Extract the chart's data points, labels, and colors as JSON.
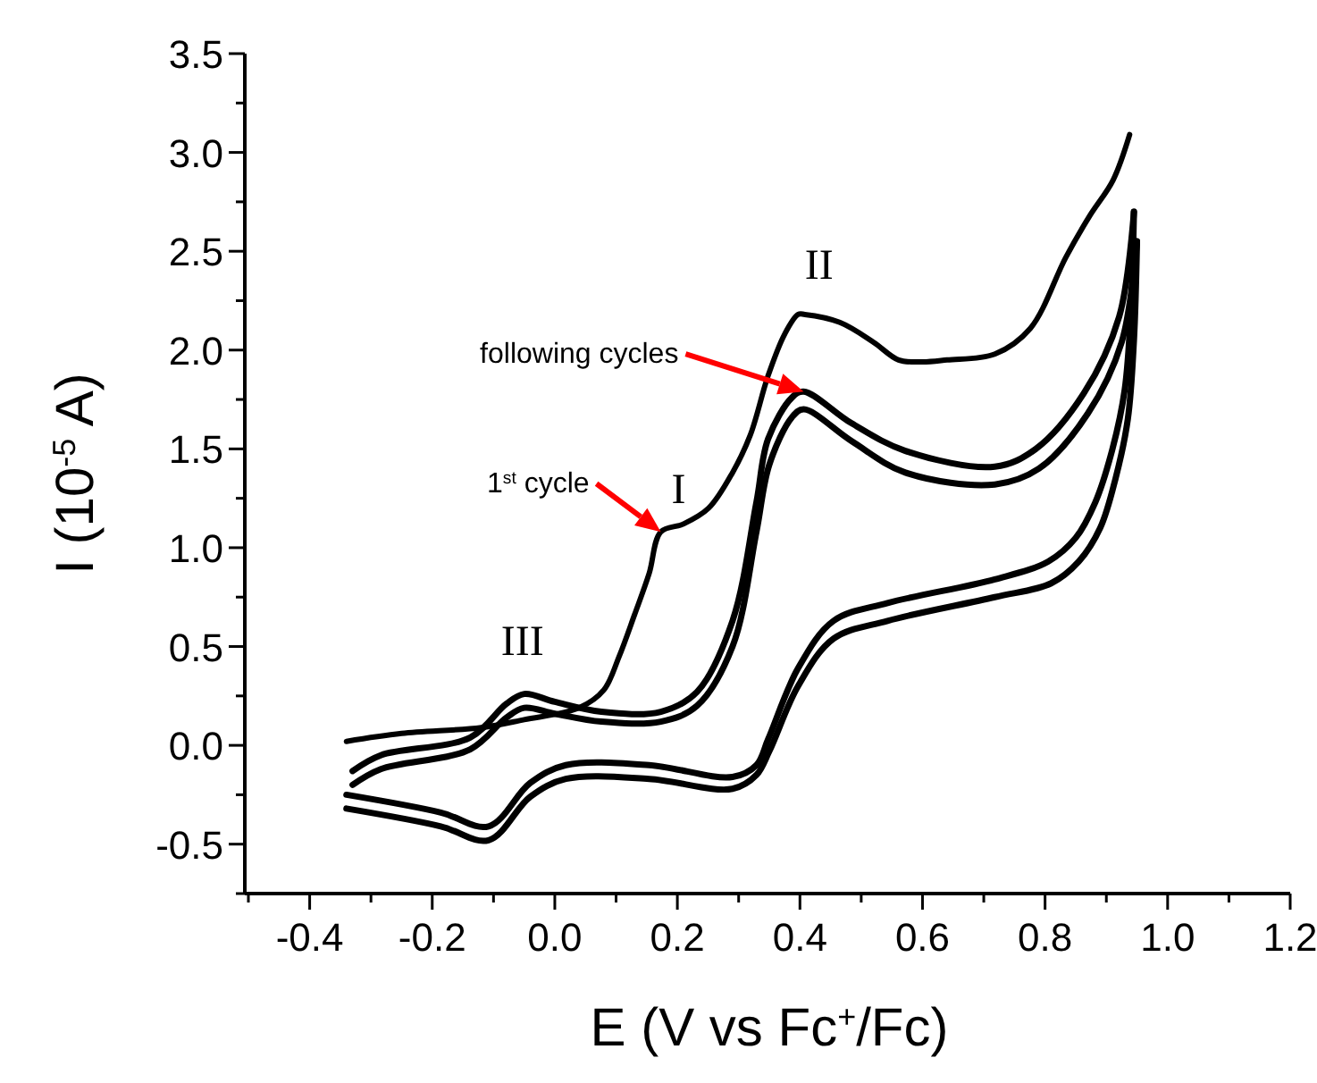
{
  "chart_data": {
    "type": "line",
    "xlabel": "E (V vs Fc$^{+}$/Fc)",
    "ylabel": "I (10$^{-5}$ A)",
    "xlim": [
      -0.5,
      1.2
    ],
    "ylim": [
      -0.75,
      3.5
    ],
    "xticks": [
      {
        "value": -0.5,
        "label": null
      },
      {
        "value": -0.4,
        "label": "-0.4"
      },
      {
        "value": -0.3,
        "label": null
      },
      {
        "value": -0.2,
        "label": "-0.2"
      },
      {
        "value": -0.1,
        "label": null
      },
      {
        "value": 0,
        "label": "0.0"
      },
      {
        "value": 0.1,
        "label": null
      },
      {
        "value": 0.2,
        "label": "0.2"
      },
      {
        "value": 0.3,
        "label": null
      },
      {
        "value": 0.4,
        "label": "0.4"
      },
      {
        "value": 0.5,
        "label": null
      },
      {
        "value": 0.6,
        "label": "0.6"
      },
      {
        "value": 0.7,
        "label": null
      },
      {
        "value": 0.8,
        "label": "0.8"
      },
      {
        "value": 0.9,
        "label": null
      },
      {
        "value": 1,
        "label": "1.0"
      },
      {
        "value": 1.1,
        "label": null
      },
      {
        "value": 1.2,
        "label": "1.2"
      }
    ],
    "yticks": [
      {
        "value": -0.75,
        "label": null
      },
      {
        "value": -0.5,
        "label": "-0.5"
      },
      {
        "value": -0.25,
        "label": null
      },
      {
        "value": 0,
        "label": "0.0"
      },
      {
        "value": 0.25,
        "label": null
      },
      {
        "value": 0.5,
        "label": "0.5"
      },
      {
        "value": 0.75,
        "label": null
      },
      {
        "value": 1,
        "label": "1.0"
      },
      {
        "value": 1.25,
        "label": null
      },
      {
        "value": 1.5,
        "label": "1.5"
      },
      {
        "value": 1.75,
        "label": null
      },
      {
        "value": 2,
        "label": "2.0"
      },
      {
        "value": 2.25,
        "label": null
      },
      {
        "value": 2.5,
        "label": "2.5"
      },
      {
        "value": 2.75,
        "label": null
      },
      {
        "value": 3,
        "label": "3.0"
      },
      {
        "value": 3.25,
        "label": null
      },
      {
        "value": 3.5,
        "label": "3.5"
      }
    ],
    "grid": false,
    "series": [
      {
        "color": "#000000",
        "x": [
          -0.34,
          -0.25,
          -0.12,
          -0.05,
          0.04,
          0.08,
          0.105,
          0.13,
          0.154,
          0.173,
          0.21,
          0.251,
          0.29,
          0.319,
          0.348,
          0.375,
          0.397,
          0.408,
          0.465,
          0.52,
          0.561,
          0.6,
          0.64,
          0.718,
          0.776,
          0.834,
          0.873,
          0.911,
          0.938
        ],
        "values": [
          0.02,
          0.06,
          0.09,
          0.13,
          0.19,
          0.28,
          0.45,
          0.66,
          0.87,
          1.08,
          1.12,
          1.2,
          1.38,
          1.57,
          1.87,
          2.08,
          2.18,
          2.18,
          2.14,
          2.04,
          1.95,
          1.94,
          1.95,
          1.98,
          2.11,
          2.47,
          2.68,
          2.86,
          3.09
        ]
      },
      {
        "color": "#000000",
        "x": [
          -0.33,
          -0.284,
          -0.138,
          -0.079,
          -0.05,
          0,
          0.076,
          0.173,
          0.232,
          0.29,
          0.329,
          0.348,
          0.387,
          0.406,
          0.484,
          0.572,
          0.718,
          0.785,
          0.863,
          0.921,
          0.945
        ],
        "values": [
          -0.13,
          -0.05,
          0.04,
          0.21,
          0.26,
          0.22,
          0.17,
          0.17,
          0.27,
          0.63,
          1.23,
          1.55,
          1.76,
          1.79,
          1.63,
          1.49,
          1.41,
          1.5,
          1.78,
          2.17,
          2.7
        ]
      },
      {
        "color": "#000000",
        "x": [
          0.945,
          0.94,
          0.93,
          0.91,
          0.882,
          0.85,
          0.805,
          0.718,
          0.543,
          0.455,
          0.397,
          0.348,
          0.329,
          0.29,
          0.154,
          0.018,
          -0.04,
          -0.108,
          -0.186,
          -0.34
        ],
        "values": [
          2.7,
          2.2,
          1.8,
          1.5,
          1.23,
          1.05,
          0.93,
          0.84,
          0.72,
          0.63,
          0.39,
          0.03,
          -0.1,
          -0.16,
          -0.1,
          -0.1,
          -0.19,
          -0.41,
          -0.34,
          -0.25
        ]
      },
      {
        "color": "#000000",
        "x": [
          -0.33,
          -0.284,
          -0.138,
          -0.079,
          -0.05,
          0,
          0.076,
          0.173,
          0.232,
          0.29,
          0.329,
          0.35,
          0.387,
          0.406,
          0.484,
          0.572,
          0.718,
          0.79,
          0.87,
          0.925,
          0.95
        ],
        "values": [
          -0.2,
          -0.12,
          -0.02,
          0.14,
          0.19,
          0.16,
          0.12,
          0.12,
          0.2,
          0.5,
          1.08,
          1.42,
          1.66,
          1.7,
          1.54,
          1.38,
          1.32,
          1.4,
          1.68,
          2.04,
          2.55
        ]
      },
      {
        "color": "#000000",
        "x": [
          0.95,
          0.945,
          0.935,
          0.915,
          0.89,
          0.855,
          0.81,
          0.718,
          0.543,
          0.455,
          0.397,
          0.35,
          0.329,
          0.29,
          0.154,
          0.018,
          -0.04,
          -0.108,
          -0.186,
          -0.34
        ],
        "values": [
          2.55,
          2.05,
          1.65,
          1.35,
          1.1,
          0.93,
          0.82,
          0.75,
          0.63,
          0.54,
          0.3,
          -0.03,
          -0.15,
          -0.22,
          -0.17,
          -0.17,
          -0.26,
          -0.48,
          -0.41,
          -0.32
        ]
      }
    ],
    "annotations": [
      {
        "text": "I",
        "x": 0.173,
        "y": 1.08
      },
      {
        "text": "II",
        "x": 0.408,
        "y": 2.18
      },
      {
        "text": "III",
        "x": -0.05,
        "y": 0.26
      },
      {
        "text": "1$^{st}$ cycle",
        "x": 0.173,
        "y": 1.08
      },
      "following cycles"
    ]
  }
}
